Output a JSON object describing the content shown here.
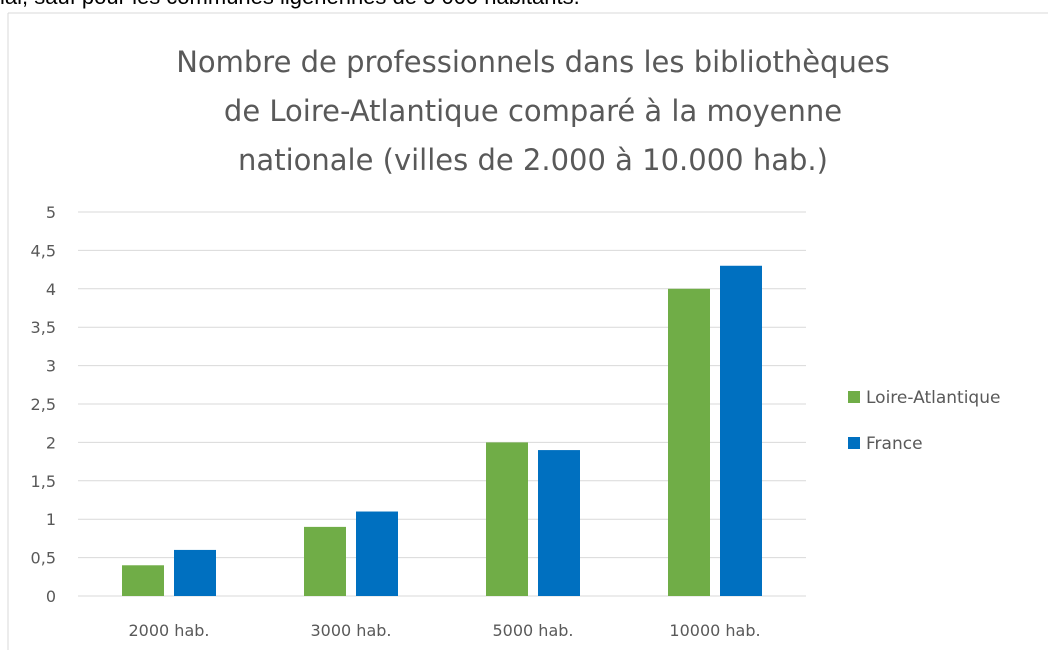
{
  "caption": "ial, sauf pour les communes ligériennes de 5 000 habitants.",
  "chart_data": {
    "type": "bar",
    "title": [
      "Nombre de professionnels dans les bibliothèques",
      "de Loire-Atlantique comparé à la moyenne",
      "nationale (villes de 2.000 à 10.000 hab.)"
    ],
    "categories": [
      "2000 hab.",
      "3000 hab.",
      "5000 hab.",
      "10000 hab."
    ],
    "series": [
      {
        "name": "Loire-Atlantique",
        "color": "#70ad47",
        "values": [
          0.4,
          0.9,
          2,
          4
        ]
      },
      {
        "name": "France",
        "color": "#0070c0",
        "values": [
          0.6,
          1.1,
          1.9,
          4.3
        ]
      }
    ],
    "ylim": [
      0,
      5
    ],
    "yticks": [
      0,
      {
        "value": 0.5,
        "label": "0,5"
      },
      1,
      {
        "value": 1.5,
        "label": "1,5"
      },
      2,
      {
        "value": 2.5,
        "label": "2,5"
      },
      3,
      {
        "value": 3.5,
        "label": "3,5"
      },
      4,
      {
        "value": 4.5,
        "label": "4,5"
      },
      5
    ],
    "grid": true,
    "legend": "right"
  }
}
